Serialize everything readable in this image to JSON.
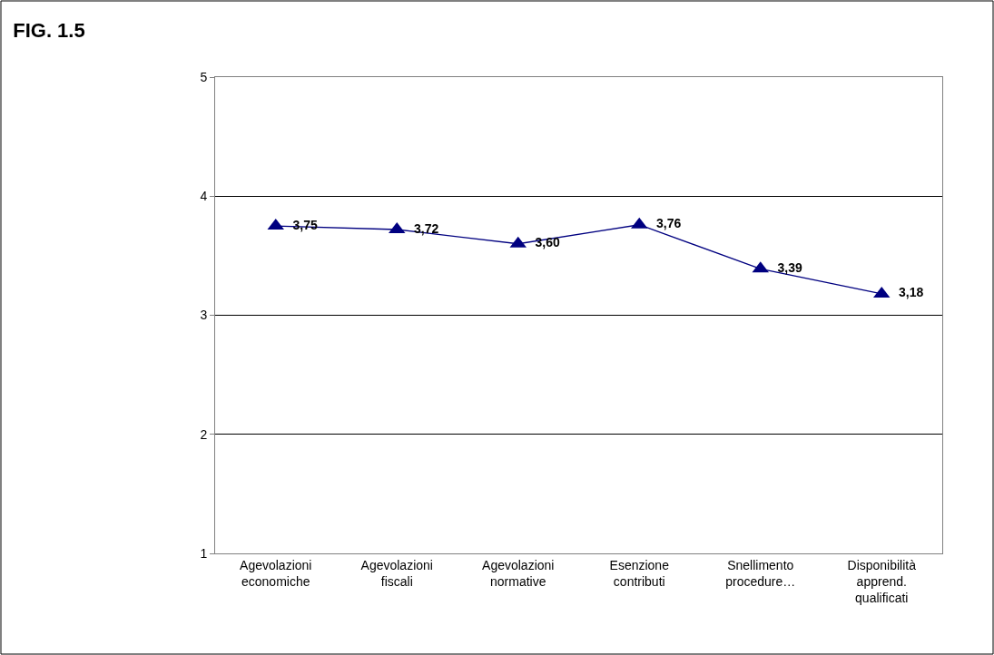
{
  "chart_data": {
    "type": "line",
    "title": "FIG. 1.5",
    "categories": [
      "Agevolazioni\neconomiche",
      "Agevolazioni\nfiscali",
      "Agevolazioni\nnormative",
      "Esenzione\ncontributi",
      "Snellimento\nprocedure…",
      "Disponibilità\napprend.\nqualificati"
    ],
    "series": [
      {
        "color": "#000080",
        "values": [
          3.75,
          3.72,
          3.6,
          3.76,
          3.39,
          3.18
        ],
        "value_labels": [
          "3,75",
          "3,72",
          "3,60",
          "3,76",
          "3,39",
          "3,18"
        ]
      }
    ],
    "ylim": [
      1,
      5
    ],
    "yticks": [
      1,
      2,
      3,
      4,
      5
    ],
    "grid": "y",
    "legend": false,
    "marker": "triangle",
    "line_style": "solid"
  }
}
